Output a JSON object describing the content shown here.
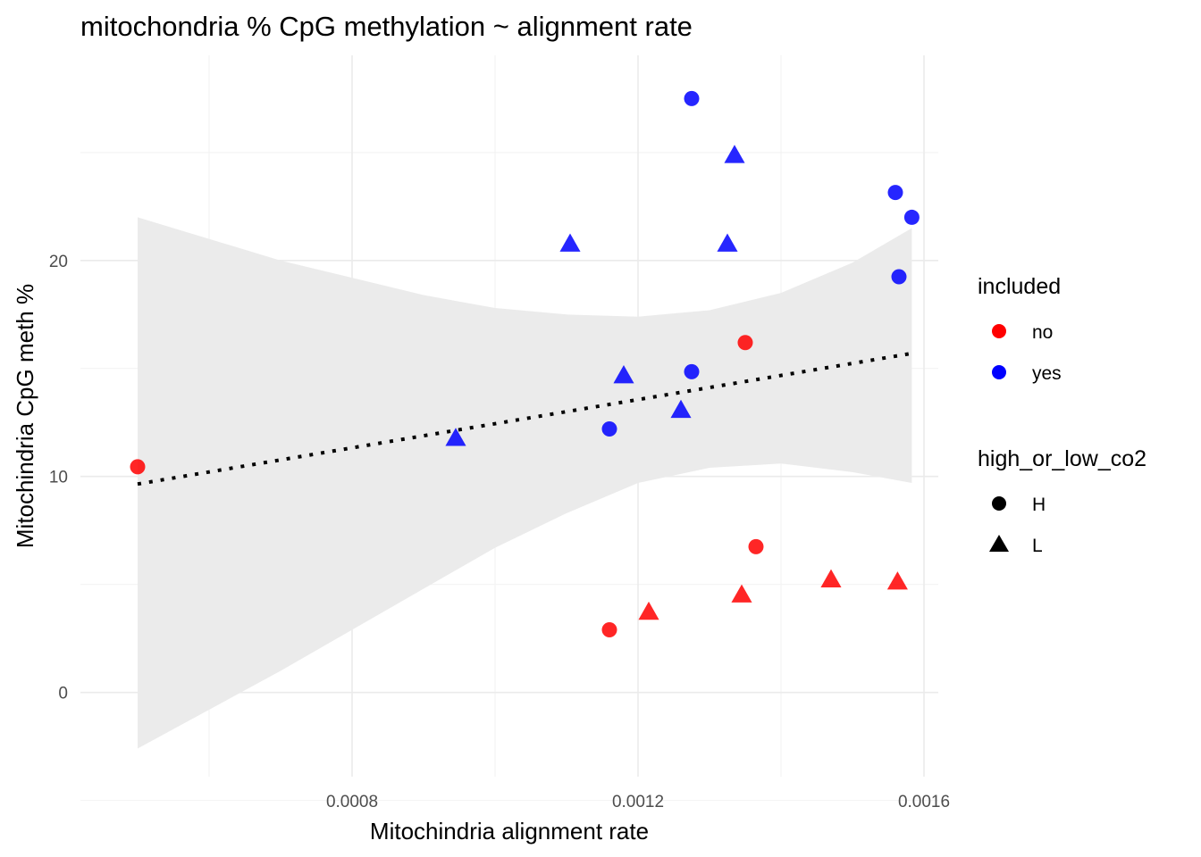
{
  "chart_data": {
    "type": "scatter",
    "title": "mitochondria % CpG methylation ~ alignment rate",
    "xlabel": "Mitochindria alignment rate",
    "ylabel": "Mitochindria CpG meth %",
    "xlim": [
      0.00042,
      0.00162
    ],
    "ylim": [
      -3.9,
      29.5
    ],
    "x_ticks": [
      0.0008,
      0.0012,
      0.0016
    ],
    "x_tick_labels": [
      "0.0008",
      "0.0012",
      "0.0016"
    ],
    "y_ticks": [
      0,
      10,
      20
    ],
    "y_tick_labels": [
      "0",
      "10",
      "20"
    ],
    "grid": true,
    "colors": {
      "no": "#ff0000",
      "yes": "#0000ff",
      "ribbon": "#ebebeb",
      "trend": "#000000"
    },
    "points": [
      {
        "x": 0.0005,
        "y": 10.45,
        "included": "no",
        "co2": "H"
      },
      {
        "x": 0.00116,
        "y": 2.9,
        "included": "no",
        "co2": "H"
      },
      {
        "x": 0.001215,
        "y": 3.75,
        "included": "no",
        "co2": "L"
      },
      {
        "x": 0.001345,
        "y": 4.55,
        "included": "no",
        "co2": "L"
      },
      {
        "x": 0.001365,
        "y": 6.75,
        "included": "no",
        "co2": "H"
      },
      {
        "x": 0.00147,
        "y": 5.25,
        "included": "no",
        "co2": "L"
      },
      {
        "x": 0.001563,
        "y": 5.15,
        "included": "no",
        "co2": "L"
      },
      {
        "x": 0.00135,
        "y": 16.2,
        "included": "no",
        "co2": "H"
      },
      {
        "x": 0.000945,
        "y": 11.8,
        "included": "yes",
        "co2": "L"
      },
      {
        "x": 0.00116,
        "y": 12.2,
        "included": "yes",
        "co2": "H"
      },
      {
        "x": 0.00118,
        "y": 14.7,
        "included": "yes",
        "co2": "L"
      },
      {
        "x": 0.00126,
        "y": 13.1,
        "included": "yes",
        "co2": "L"
      },
      {
        "x": 0.001275,
        "y": 14.85,
        "included": "yes",
        "co2": "H"
      },
      {
        "x": 0.001565,
        "y": 19.25,
        "included": "yes",
        "co2": "H"
      },
      {
        "x": 0.001105,
        "y": 20.8,
        "included": "yes",
        "co2": "L"
      },
      {
        "x": 0.001325,
        "y": 20.8,
        "included": "yes",
        "co2": "L"
      },
      {
        "x": 0.001275,
        "y": 27.5,
        "included": "yes",
        "co2": "H"
      },
      {
        "x": 0.001335,
        "y": 24.9,
        "included": "yes",
        "co2": "L"
      },
      {
        "x": 0.00156,
        "y": 23.15,
        "included": "yes",
        "co2": "H"
      },
      {
        "x": 0.001583,
        "y": 22.0,
        "included": "yes",
        "co2": "H"
      }
    ],
    "trend_line": {
      "x": [
        0.0005,
        0.001583
      ],
      "y": [
        9.65,
        15.7
      ]
    },
    "ribbon": {
      "x": [
        0.0005,
        0.0007,
        0.0009,
        0.001,
        0.0011,
        0.0012,
        0.0013,
        0.0014,
        0.0015,
        0.001583
      ],
      "upper": [
        22.0,
        20.0,
        18.4,
        17.8,
        17.5,
        17.4,
        17.7,
        18.5,
        19.9,
        21.5
      ],
      "lower": [
        -2.6,
        1.0,
        4.8,
        6.7,
        8.3,
        9.7,
        10.4,
        10.6,
        10.2,
        9.7
      ]
    },
    "legend": {
      "position": "right",
      "included_title": "included",
      "included_items": [
        "no",
        "yes"
      ],
      "shape_title": "high_or_low_co2",
      "shape_items": [
        "H",
        "L"
      ]
    }
  }
}
